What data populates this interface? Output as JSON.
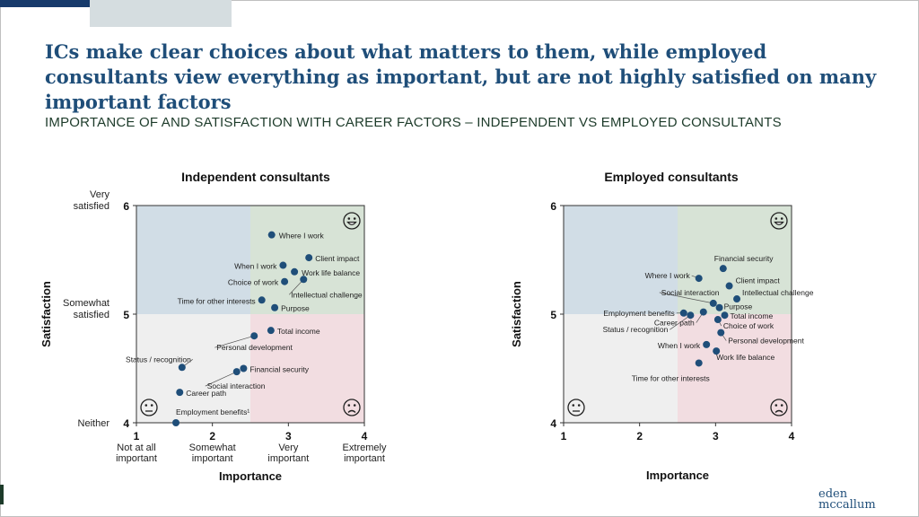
{
  "header": {
    "title": "ICs make clear choices about what matters to them, while employed consultants view everything as important, but are not highly satisfied on many important factors",
    "subtitle": "IMPORTANCE OF AND SATISFACTION WITH CAREER FACTORS – INDEPENDENT VS EMPLOYED CONSULTANTS"
  },
  "brand": {
    "line1": "eden",
    "line2": "mccallum"
  },
  "colors": {
    "quad_top_left": "#d1dde6",
    "quad_top_right": "#d7e3d6",
    "quad_bottom_left": "#efefef",
    "quad_bottom_right": "#f2dde1",
    "point": "#1f4e79",
    "title": "#1f4e79"
  },
  "chart_data": [
    {
      "type": "scatter",
      "title": "Independent consultants",
      "xlabel": "Importance",
      "ylabel": "Satisfaction",
      "xlim": [
        1,
        4
      ],
      "ylim": [
        4,
        6
      ],
      "x_ticks": [
        1,
        2,
        3,
        4
      ],
      "y_ticks": [
        4,
        5,
        6
      ],
      "x_tick_descriptions": [
        "Not at all\nimportant",
        "Somewhat\nimportant",
        "Very\nimportant",
        "Extremely\nimportant"
      ],
      "y_tick_descriptions": [
        "Neither",
        "Somewhat\nsatisfied",
        "Very\nsatisfied"
      ],
      "quadrant_split": {
        "x": 2.5,
        "y": 5
      },
      "icons": [
        "happy-face",
        "sad-face",
        "neutral-face"
      ],
      "points": [
        {
          "label": "Where I work",
          "x": 2.78,
          "y": 5.73
        },
        {
          "label": "Client impact",
          "x": 3.27,
          "y": 5.52
        },
        {
          "label": "When I work",
          "x": 2.93,
          "y": 5.45
        },
        {
          "label": "Work life balance",
          "x": 3.08,
          "y": 5.39
        },
        {
          "label": "Choice of work",
          "x": 2.95,
          "y": 5.3
        },
        {
          "label": "Intellectual challenge",
          "x": 3.2,
          "y": 5.32
        },
        {
          "label": "Time  for other interests",
          "x": 2.65,
          "y": 5.13
        },
        {
          "label": "Purpose",
          "x": 2.82,
          "y": 5.06
        },
        {
          "label": "Total income",
          "x": 2.77,
          "y": 4.85
        },
        {
          "label": "Personal development",
          "x": 2.55,
          "y": 4.8
        },
        {
          "label": "Status / recognition",
          "x": 1.6,
          "y": 4.51
        },
        {
          "label": "Financial security",
          "x": 2.41,
          "y": 4.5
        },
        {
          "label": "Social interaction",
          "x": 2.32,
          "y": 4.47
        },
        {
          "label": "Career path",
          "x": 1.57,
          "y": 4.28
        },
        {
          "label": "Employment benefits¹",
          "x": 1.52,
          "y": 4.0
        }
      ]
    },
    {
      "type": "scatter",
      "title": "Employed consultants",
      "xlabel": "Importance",
      "ylabel": "Satisfaction",
      "xlim": [
        1,
        4
      ],
      "ylim": [
        4,
        6
      ],
      "x_ticks": [
        1,
        2,
        3,
        4
      ],
      "y_ticks": [
        4,
        5,
        6
      ],
      "quadrant_split": {
        "x": 2.5,
        "y": 5
      },
      "icons": [
        "happy-face",
        "sad-face",
        "neutral-face"
      ],
      "points": [
        {
          "label": "Financial security",
          "x": 3.1,
          "y": 5.42
        },
        {
          "label": "Where I work",
          "x": 2.78,
          "y": 5.33
        },
        {
          "label": "Client impact",
          "x": 3.18,
          "y": 5.26
        },
        {
          "label": "Intellectual challenge",
          "x": 3.28,
          "y": 5.14
        },
        {
          "label": "Social interaction",
          "x": 2.97,
          "y": 5.1
        },
        {
          "label": "Purpose",
          "x": 3.05,
          "y": 5.06
        },
        {
          "label": "Employment benefits",
          "x": 2.58,
          "y": 5.01
        },
        {
          "label": "Career path",
          "x": 2.84,
          "y": 5.02
        },
        {
          "label": "Total income",
          "x": 3.12,
          "y": 4.99
        },
        {
          "label": "Status / recognition",
          "x": 2.67,
          "y": 4.99
        },
        {
          "label": "Choice of work",
          "x": 3.03,
          "y": 4.95
        },
        {
          "label": "Personal development",
          "x": 3.07,
          "y": 4.83
        },
        {
          "label": "When I work",
          "x": 2.88,
          "y": 4.72
        },
        {
          "label": "Work life balance",
          "x": 3.01,
          "y": 4.66
        },
        {
          "label": "Time  for other interests",
          "x": 2.78,
          "y": 4.55
        }
      ]
    }
  ]
}
